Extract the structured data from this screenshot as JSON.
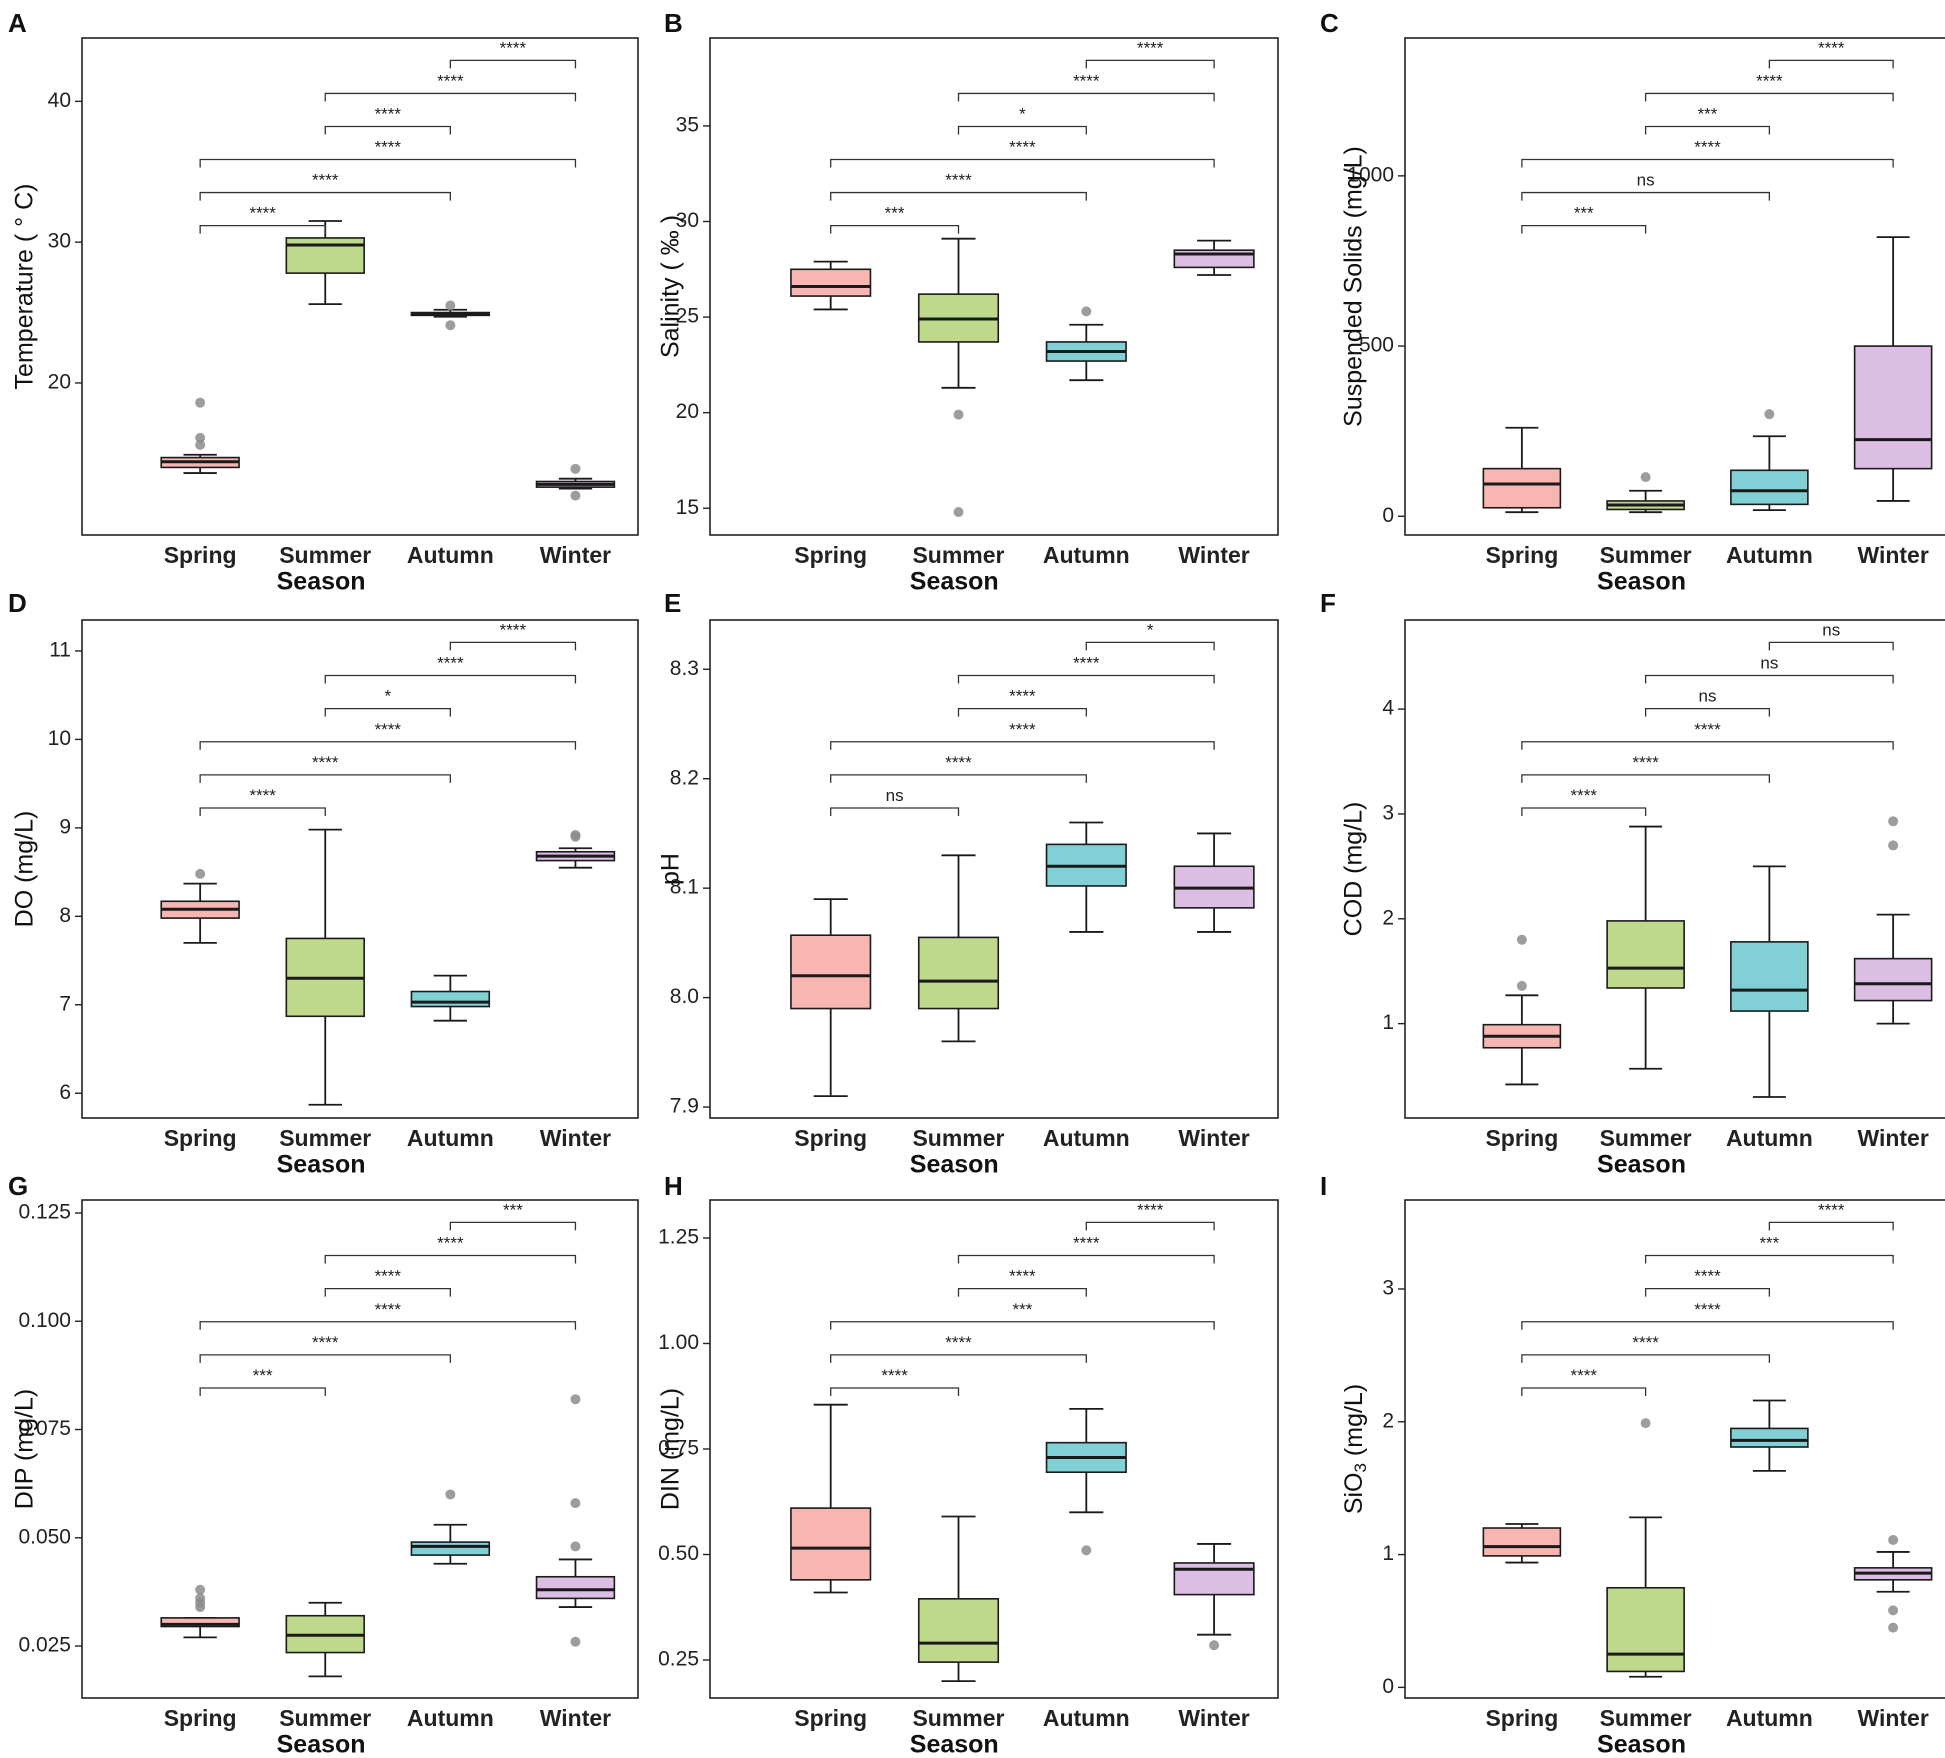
{
  "chart_data": [
    {
      "panel": "A",
      "type": "box",
      "ylabel": "Temperature ( ° C)",
      "xlabel": "Season",
      "categories": [
        "Spring",
        "Summer",
        "Autumn",
        "Winter"
      ],
      "ylim": [
        9.2,
        44.5
      ],
      "yticks": [
        20,
        30,
        40
      ],
      "ytick_labels": [
        "20",
        "30",
        "40"
      ],
      "boxes": [
        {
          "min": 13.6,
          "q1": 14.0,
          "median": 14.4,
          "q3": 14.7,
          "max": 14.9,
          "outliers": [
            15.6,
            16.1,
            18.6
          ]
        },
        {
          "min": 25.6,
          "q1": 27.8,
          "median": 29.8,
          "q3": 30.3,
          "max": 31.5,
          "outliers": []
        },
        {
          "min": 24.7,
          "q1": 24.8,
          "median": 24.9,
          "q3": 25.0,
          "max": 25.2,
          "outliers": [
            24.1,
            25.5
          ]
        },
        {
          "min": 12.5,
          "q1": 12.6,
          "median": 12.8,
          "q3": 13.0,
          "max": 13.2,
          "outliers": [
            12.0,
            13.9
          ]
        }
      ],
      "comparisons": [
        {
          "from": 0,
          "to": 1,
          "label": "****"
        },
        {
          "from": 0,
          "to": 2,
          "label": "****"
        },
        {
          "from": 0,
          "to": 3,
          "label": "****"
        },
        {
          "from": 1,
          "to": 2,
          "label": "****"
        },
        {
          "from": 1,
          "to": 3,
          "label": "****"
        },
        {
          "from": 2,
          "to": 3,
          "label": "****"
        }
      ]
    },
    {
      "panel": "B",
      "type": "box",
      "ylabel": "Salinity ( ‰ )",
      "xlabel": "Season",
      "categories": [
        "Spring",
        "Summer",
        "Autumn",
        "Winter"
      ],
      "ylim": [
        13.6,
        39.6
      ],
      "yticks": [
        15,
        20,
        25,
        30,
        35
      ],
      "ytick_labels": [
        "15",
        "20",
        "25",
        "30",
        "35"
      ],
      "boxes": [
        {
          "min": 25.4,
          "q1": 26.1,
          "median": 26.6,
          "q3": 27.5,
          "max": 27.9,
          "outliers": []
        },
        {
          "min": 21.3,
          "q1": 23.7,
          "median": 24.9,
          "q3": 26.2,
          "max": 29.1,
          "outliers": [
            14.8,
            19.9
          ]
        },
        {
          "min": 21.7,
          "q1": 22.7,
          "median": 23.2,
          "q3": 23.7,
          "max": 24.6,
          "outliers": [
            25.3
          ]
        },
        {
          "min": 27.2,
          "q1": 27.6,
          "median": 28.3,
          "q3": 28.5,
          "max": 29.0,
          "outliers": []
        }
      ],
      "comparisons": [
        {
          "from": 0,
          "to": 1,
          "label": "***"
        },
        {
          "from": 0,
          "to": 2,
          "label": "****"
        },
        {
          "from": 0,
          "to": 3,
          "label": "****"
        },
        {
          "from": 1,
          "to": 2,
          "label": "*"
        },
        {
          "from": 1,
          "to": 3,
          "label": "****"
        },
        {
          "from": 2,
          "to": 3,
          "label": "****"
        }
      ]
    },
    {
      "panel": "C",
      "type": "box",
      "ylabel": "Suspended Solids (mg/L)",
      "xlabel": "Season",
      "categories": [
        "Spring",
        "Summer",
        "Autumn",
        "Winter"
      ],
      "ylim": [
        -55,
        1405
      ],
      "yticks": [
        0,
        500,
        1000
      ],
      "ytick_labels": [
        "0",
        "500",
        "1000"
      ],
      "boxes": [
        {
          "min": 12,
          "q1": 25,
          "median": 95,
          "q3": 140,
          "max": 260,
          "outliers": []
        },
        {
          "min": 12,
          "q1": 20,
          "median": 33,
          "q3": 45,
          "max": 75,
          "outliers": [
            115
          ]
        },
        {
          "min": 18,
          "q1": 35,
          "median": 75,
          "q3": 135,
          "max": 235,
          "outliers": [
            300
          ]
        },
        {
          "min": 45,
          "q1": 140,
          "median": 225,
          "q3": 500,
          "max": 820,
          "outliers": []
        }
      ],
      "comparisons": [
        {
          "from": 0,
          "to": 1,
          "label": "***"
        },
        {
          "from": 0,
          "to": 2,
          "label": "ns"
        },
        {
          "from": 0,
          "to": 3,
          "label": "****"
        },
        {
          "from": 1,
          "to": 2,
          "label": "***"
        },
        {
          "from": 1,
          "to": 3,
          "label": "****"
        },
        {
          "from": 2,
          "to": 3,
          "label": "****"
        }
      ]
    },
    {
      "panel": "D",
      "type": "box",
      "ylabel": "DO (mg/L)",
      "xlabel": "Season",
      "categories": [
        "Spring",
        "Summer",
        "Autumn",
        "Winter"
      ],
      "ylim": [
        5.72,
        11.35
      ],
      "yticks": [
        6,
        7,
        8,
        9,
        10,
        11
      ],
      "ytick_labels": [
        "6",
        "7",
        "8",
        "9",
        "10",
        "11"
      ],
      "boxes": [
        {
          "min": 7.7,
          "q1": 7.98,
          "median": 8.08,
          "q3": 8.17,
          "max": 8.37,
          "outliers": [
            8.48
          ]
        },
        {
          "min": 5.87,
          "q1": 6.87,
          "median": 7.3,
          "q3": 7.75,
          "max": 8.98,
          "outliers": []
        },
        {
          "min": 6.82,
          "q1": 6.98,
          "median": 7.03,
          "q3": 7.15,
          "max": 7.33,
          "outliers": []
        },
        {
          "min": 8.55,
          "q1": 8.63,
          "median": 8.68,
          "q3": 8.73,
          "max": 8.77,
          "outliers": [
            8.9,
            8.92
          ]
        }
      ],
      "comparisons": [
        {
          "from": 0,
          "to": 1,
          "label": "****"
        },
        {
          "from": 0,
          "to": 2,
          "label": "****"
        },
        {
          "from": 0,
          "to": 3,
          "label": "****"
        },
        {
          "from": 1,
          "to": 2,
          "label": "*"
        },
        {
          "from": 1,
          "to": 3,
          "label": "****"
        },
        {
          "from": 2,
          "to": 3,
          "label": "****"
        }
      ]
    },
    {
      "panel": "E",
      "type": "box",
      "ylabel": "pH",
      "xlabel": "Season",
      "categories": [
        "Spring",
        "Summer",
        "Autumn",
        "Winter"
      ],
      "ylim": [
        7.89,
        8.345
      ],
      "yticks": [
        7.9,
        8.0,
        8.1,
        8.2,
        8.3
      ],
      "ytick_labels": [
        "7.9",
        "8.0",
        "8.1",
        "8.2",
        "8.3"
      ],
      "boxes": [
        {
          "min": 7.91,
          "q1": 7.99,
          "median": 8.02,
          "q3": 8.057,
          "max": 8.09,
          "outliers": []
        },
        {
          "min": 7.96,
          "q1": 7.99,
          "median": 8.015,
          "q3": 8.055,
          "max": 8.13,
          "outliers": []
        },
        {
          "min": 8.06,
          "q1": 8.102,
          "median": 8.12,
          "q3": 8.14,
          "max": 8.16,
          "outliers": []
        },
        {
          "min": 8.06,
          "q1": 8.082,
          "median": 8.1,
          "q3": 8.12,
          "max": 8.15,
          "outliers": []
        }
      ],
      "comparisons": [
        {
          "from": 0,
          "to": 1,
          "label": "ns"
        },
        {
          "from": 0,
          "to": 2,
          "label": "****"
        },
        {
          "from": 0,
          "to": 3,
          "label": "****"
        },
        {
          "from": 1,
          "to": 2,
          "label": "****"
        },
        {
          "from": 1,
          "to": 3,
          "label": "****"
        },
        {
          "from": 2,
          "to": 3,
          "label": "*"
        }
      ]
    },
    {
      "panel": "F",
      "type": "box",
      "ylabel": "COD (mg/L)",
      "xlabel": "Season",
      "categories": [
        "Spring",
        "Summer",
        "Autumn",
        "Winter"
      ],
      "ylim": [
        0.1,
        4.85
      ],
      "yticks": [
        1,
        2,
        3,
        4
      ],
      "ytick_labels": [
        "1",
        "2",
        "3",
        "4"
      ],
      "boxes": [
        {
          "min": 0.42,
          "q1": 0.77,
          "median": 0.88,
          "q3": 0.99,
          "max": 1.27,
          "outliers": [
            1.36,
            1.8
          ]
        },
        {
          "min": 0.57,
          "q1": 1.34,
          "median": 1.53,
          "q3": 1.98,
          "max": 2.88,
          "outliers": []
        },
        {
          "min": 0.3,
          "q1": 1.12,
          "median": 1.32,
          "q3": 1.78,
          "max": 2.5,
          "outliers": []
        },
        {
          "min": 1.0,
          "q1": 1.22,
          "median": 1.38,
          "q3": 1.62,
          "max": 2.04,
          "outliers": [
            2.7,
            2.93
          ]
        }
      ],
      "comparisons": [
        {
          "from": 0,
          "to": 1,
          "label": "****"
        },
        {
          "from": 0,
          "to": 2,
          "label": "****"
        },
        {
          "from": 0,
          "to": 3,
          "label": "****"
        },
        {
          "from": 1,
          "to": 2,
          "label": "ns"
        },
        {
          "from": 1,
          "to": 3,
          "label": "ns"
        },
        {
          "from": 2,
          "to": 3,
          "label": "ns"
        }
      ]
    },
    {
      "panel": "G",
      "type": "box",
      "ylabel": "DIP (mg/L)",
      "xlabel": "Season",
      "categories": [
        "Spring",
        "Summer",
        "Autumn",
        "Winter"
      ],
      "ylim": [
        0.013,
        0.128
      ],
      "yticks": [
        0.025,
        0.05,
        0.075,
        0.1,
        0.125
      ],
      "ytick_labels": [
        "0.025",
        "0.050",
        "0.075",
        "0.100",
        "0.125"
      ],
      "boxes": [
        {
          "min": 0.027,
          "q1": 0.0295,
          "median": 0.03,
          "q3": 0.0315,
          "max": 0.0315,
          "outliers": [
            0.034,
            0.035,
            0.036,
            0.038
          ]
        },
        {
          "min": 0.018,
          "q1": 0.0235,
          "median": 0.0275,
          "q3": 0.032,
          "max": 0.035,
          "outliers": []
        },
        {
          "min": 0.044,
          "q1": 0.046,
          "median": 0.048,
          "q3": 0.049,
          "max": 0.053,
          "outliers": [
            0.06
          ]
        },
        {
          "min": 0.034,
          "q1": 0.036,
          "median": 0.038,
          "q3": 0.041,
          "max": 0.045,
          "outliers": [
            0.026,
            0.048,
            0.058,
            0.082
          ]
        }
      ],
      "comparisons": [
        {
          "from": 0,
          "to": 1,
          "label": "***"
        },
        {
          "from": 0,
          "to": 2,
          "label": "****"
        },
        {
          "from": 0,
          "to": 3,
          "label": "****"
        },
        {
          "from": 1,
          "to": 2,
          "label": "****"
        },
        {
          "from": 1,
          "to": 3,
          "label": "****"
        },
        {
          "from": 2,
          "to": 3,
          "label": "***"
        }
      ]
    },
    {
      "panel": "H",
      "type": "box",
      "ylabel": "DIN (mg/L)",
      "xlabel": "Season",
      "categories": [
        "Spring",
        "Summer",
        "Autumn",
        "Winter"
      ],
      "ylim": [
        0.16,
        1.34
      ],
      "yticks": [
        0.25,
        0.5,
        0.75,
        1.0,
        1.25
      ],
      "ytick_labels": [
        "0.25",
        "0.50",
        "0.75",
        "1.00",
        "1.25"
      ],
      "boxes": [
        {
          "min": 0.41,
          "q1": 0.44,
          "median": 0.515,
          "q3": 0.61,
          "max": 0.855,
          "outliers": []
        },
        {
          "min": 0.2,
          "q1": 0.245,
          "median": 0.29,
          "q3": 0.395,
          "max": 0.59,
          "outliers": []
        },
        {
          "min": 0.6,
          "q1": 0.695,
          "median": 0.73,
          "q3": 0.765,
          "max": 0.845,
          "outliers": [
            0.51
          ]
        },
        {
          "min": 0.31,
          "q1": 0.405,
          "median": 0.465,
          "q3": 0.48,
          "max": 0.525,
          "outliers": [
            0.285
          ]
        }
      ],
      "comparisons": [
        {
          "from": 0,
          "to": 1,
          "label": "****"
        },
        {
          "from": 0,
          "to": 2,
          "label": "****"
        },
        {
          "from": 0,
          "to": 3,
          "label": "***"
        },
        {
          "from": 1,
          "to": 2,
          "label": "****"
        },
        {
          "from": 1,
          "to": 3,
          "label": "****"
        },
        {
          "from": 2,
          "to": 3,
          "label": "****"
        }
      ]
    },
    {
      "panel": "I",
      "type": "box",
      "ylabel": "SiO3 (mg/L)",
      "ylabel_base": "SiO",
      "ylabel_sub": "3",
      "ylabel_tail": " (mg/L)",
      "xlabel": "Season",
      "categories": [
        "Spring",
        "Summer",
        "Autumn",
        "Winter"
      ],
      "ylim": [
        -0.08,
        3.67
      ],
      "yticks": [
        0,
        1,
        2,
        3
      ],
      "ytick_labels": [
        "0",
        "1",
        "2",
        "3"
      ],
      "boxes": [
        {
          "min": 0.94,
          "q1": 0.99,
          "median": 1.06,
          "q3": 1.2,
          "max": 1.23,
          "outliers": []
        },
        {
          "min": 0.08,
          "q1": 0.12,
          "median": 0.25,
          "q3": 0.75,
          "max": 1.28,
          "outliers": [
            1.99
          ]
        },
        {
          "min": 1.63,
          "q1": 1.81,
          "median": 1.86,
          "q3": 1.95,
          "max": 2.16,
          "outliers": []
        },
        {
          "min": 0.72,
          "q1": 0.81,
          "median": 0.86,
          "q3": 0.9,
          "max": 1.02,
          "outliers": [
            0.45,
            0.58,
            1.11
          ]
        }
      ],
      "comparisons": [
        {
          "from": 0,
          "to": 1,
          "label": "****"
        },
        {
          "from": 0,
          "to": 2,
          "label": "****"
        },
        {
          "from": 0,
          "to": 3,
          "label": "****"
        },
        {
          "from": 1,
          "to": 2,
          "label": "****"
        },
        {
          "from": 1,
          "to": 3,
          "label": "***"
        },
        {
          "from": 2,
          "to": 3,
          "label": "****"
        }
      ]
    }
  ],
  "colors": {
    "Spring": "#f7b6b2",
    "Summer": "#bfd98c",
    "Autumn": "#80d0d6",
    "Winter": "#dcbde3",
    "outlier": "#8c8c8c",
    "line": "#1a1a1a"
  }
}
